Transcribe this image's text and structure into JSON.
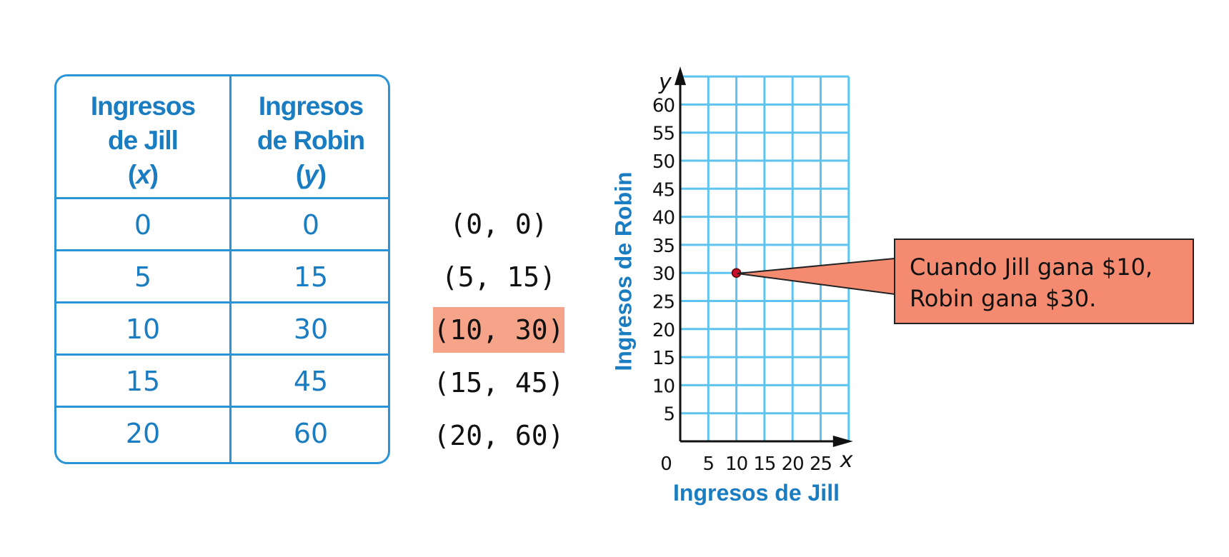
{
  "table": {
    "header_x": [
      "Ingresos",
      "de Jill"
    ],
    "header_x_var": "x",
    "header_y": [
      "Ingresos",
      "de Robin"
    ],
    "header_y_var": "y",
    "rows": [
      [
        "0",
        "0"
      ],
      [
        "5",
        "15"
      ],
      [
        "10",
        "30"
      ],
      [
        "15",
        "45"
      ],
      [
        "20",
        "60"
      ]
    ]
  },
  "pairs": [
    "(0, 0)",
    "(5, 15)",
    "(10, 30)",
    "(15, 45)",
    "(20, 60)"
  ],
  "highlighted_pair_index": 2,
  "callout": {
    "lines": [
      "Cuando Jill gana $10,",
      "Robin gana $30."
    ]
  },
  "colors": {
    "accent": "#1a7cc1",
    "grid": "#5ec3ef",
    "highlight": "#f5a48a",
    "callout": "#f48b70",
    "point": "#c8102e"
  },
  "chart_data": {
    "type": "scatter",
    "xlabel": "Ingresos de Jill",
    "ylabel": "Ingresos de Robin",
    "x_var": "x",
    "y_var": "y",
    "xlim": [
      0,
      30
    ],
    "ylim": [
      0,
      60
    ],
    "x_ticks": [
      0,
      5,
      10,
      15,
      20,
      25
    ],
    "y_ticks": [
      5,
      10,
      15,
      20,
      25,
      30,
      35,
      40,
      45,
      50,
      55,
      60
    ],
    "grid": true,
    "points": [
      {
        "x": 10,
        "y": 30
      }
    ]
  }
}
